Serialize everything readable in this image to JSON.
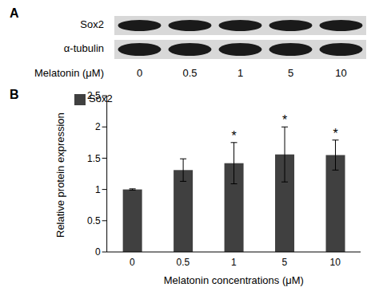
{
  "panel_labels": [
    "A",
    "B"
  ],
  "blot": {
    "rows": [
      "Sox2",
      "α-tubulin"
    ],
    "treatment_label": "Melatonin (μM)",
    "lanes": [
      0,
      0.5,
      1,
      5,
      10
    ]
  },
  "chart_data": {
    "type": "bar",
    "categories": [
      "0",
      "0.5",
      "1",
      "5",
      "10"
    ],
    "series": [
      {
        "name": "Sox2",
        "color": "#404040",
        "values": [
          1.0,
          1.31,
          1.42,
          1.56,
          1.55
        ],
        "errors": [
          0.01,
          0.18,
          0.33,
          0.44,
          0.24
        ]
      }
    ],
    "annotations": [
      {
        "category": "1",
        "text": "*"
      },
      {
        "category": "5",
        "text": "*"
      },
      {
        "category": "10",
        "text": "*"
      }
    ],
    "x_label": "Melatonin concentrations (μM)",
    "y_label": "Relative protein expression",
    "ylim": [
      0,
      2.5
    ],
    "yticks": [
      0,
      0.5,
      1,
      1.5,
      2,
      2.5
    ],
    "legend": "top-left"
  }
}
